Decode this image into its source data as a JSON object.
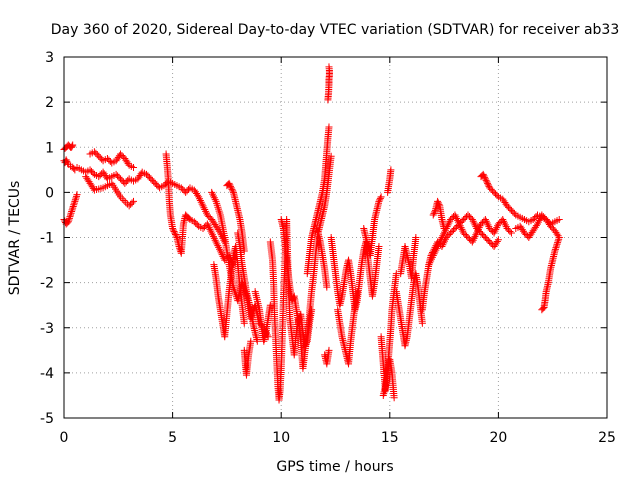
{
  "chart_data": {
    "type": "scatter",
    "title": "Day 360 of 2020, Sidereal Day-to-day VTEC variation (SDTVAR) for receiver ab33",
    "xlabel": "GPS time / hours",
    "ylabel": "SDTVAR / TECUs",
    "xlim": [
      0,
      25
    ],
    "ylim": [
      -5,
      3
    ],
    "xticks": [
      0,
      5,
      10,
      15,
      20,
      25
    ],
    "yticks": [
      -5,
      -4,
      -3,
      -2,
      -1,
      0,
      1,
      2,
      3
    ],
    "grid": true,
    "marker": "+",
    "series_color": "#ff0000",
    "series": [
      {
        "name": "SDTVAR",
        "segments": [
          {
            "x": [
              0.0,
              0.1,
              0.2,
              0.3,
              0.35,
              0.4
            ],
            "y": [
              0.95,
              1.0,
              1.05,
              1.0,
              1.0,
              1.05
            ]
          },
          {
            "x": [
              0.0,
              0.05,
              0.1,
              0.2,
              0.3,
              0.4,
              0.5
            ],
            "y": [
              0.7,
              0.66,
              0.72,
              0.62,
              0.58,
              0.56,
              0.5
            ]
          },
          {
            "x": [
              0.0,
              0.1,
              0.2,
              0.3,
              0.4,
              0.5,
              0.6
            ],
            "y": [
              -0.6,
              -0.7,
              -0.65,
              -0.5,
              -0.35,
              -0.2,
              -0.05
            ]
          },
          {
            "x": [
              0.6,
              0.8,
              1.0,
              1.2,
              1.4,
              1.6,
              1.8,
              2.0,
              2.2,
              2.4,
              2.6,
              2.8,
              3.0,
              3.2,
              3.4,
              3.6,
              3.8,
              4.0,
              4.2,
              4.4,
              4.6,
              4.8,
              5.0,
              5.2,
              5.4,
              5.6,
              5.8,
              6.0,
              6.2,
              6.4,
              6.6,
              6.8,
              7.0,
              7.2,
              7.4
            ],
            "y": [
              0.55,
              0.5,
              0.45,
              0.5,
              0.4,
              0.35,
              0.45,
              0.3,
              0.35,
              0.4,
              0.3,
              0.2,
              0.3,
              0.25,
              0.3,
              0.45,
              0.4,
              0.3,
              0.2,
              0.1,
              0.15,
              0.25,
              0.2,
              0.15,
              0.1,
              0.0,
              0.1,
              0.05,
              -0.1,
              -0.3,
              -0.5,
              -0.6,
              -0.75,
              -0.9,
              -1.1
            ]
          },
          {
            "x": [
              1.2,
              1.4,
              1.6,
              1.8,
              2.0,
              2.2,
              2.4,
              2.6,
              2.8,
              3.0,
              3.2
            ],
            "y": [
              0.85,
              0.9,
              0.8,
              0.7,
              0.75,
              0.65,
              0.7,
              0.85,
              0.75,
              0.6,
              0.55
            ]
          },
          {
            "x": [
              1.0,
              1.2,
              1.4,
              1.8,
              2.2,
              2.6,
              3.0,
              3.2
            ],
            "y": [
              0.35,
              0.2,
              0.05,
              0.1,
              0.2,
              -0.1,
              -0.3,
              -0.2
            ]
          },
          {
            "x": [
              4.7,
              4.75,
              4.8,
              4.85,
              4.9,
              5.0,
              5.1,
              5.2,
              5.3,
              5.4,
              5.5,
              5.6,
              5.7,
              5.8,
              6.0,
              6.2,
              6.4,
              6.6,
              6.8,
              7.0,
              7.2,
              7.4,
              7.6,
              7.8
            ],
            "y": [
              0.85,
              0.6,
              0.3,
              -0.2,
              -0.5,
              -0.8,
              -0.9,
              -1.0,
              -1.2,
              -1.35,
              -0.7,
              -0.5,
              -0.55,
              -0.6,
              -0.65,
              -0.75,
              -0.8,
              -0.7,
              -0.9,
              -1.1,
              -1.3,
              -1.5,
              -1.4,
              -1.6
            ]
          },
          {
            "x": [
              6.8,
              7.0,
              7.2,
              7.4,
              7.6,
              7.8,
              8.0,
              8.2,
              8.4,
              8.6,
              8.8,
              9.0,
              9.2,
              9.4
            ],
            "y": [
              0.0,
              -0.2,
              -0.5,
              -1.0,
              -1.6,
              -2.1,
              -2.4,
              -2.0,
              -2.3,
              -2.8,
              -2.5,
              -2.9,
              -3.0,
              -3.2
            ]
          },
          {
            "x": [
              6.9,
              7.0,
              7.1,
              7.2,
              7.3,
              7.4,
              7.5,
              7.6,
              7.7,
              7.8,
              7.9,
              8.0,
              8.1,
              8.2,
              8.3
            ],
            "y": [
              -1.6,
              -1.9,
              -2.3,
              -2.6,
              -2.9,
              -3.2,
              -2.7,
              -2.2,
              -1.8,
              -1.4,
              -1.2,
              -1.6,
              -2.1,
              -2.5,
              -2.9
            ]
          },
          {
            "x": [
              7.5,
              7.6,
              7.7,
              7.8,
              7.9,
              8.0,
              8.1,
              8.2,
              8.3
            ],
            "y": [
              0.15,
              0.2,
              0.1,
              0.0,
              -0.2,
              -0.4,
              -0.6,
              -0.9,
              -1.3
            ]
          },
          {
            "x": [
              8.0,
              8.1,
              8.2,
              8.3,
              8.4,
              8.5,
              8.6,
              8.7,
              8.8,
              8.9
            ],
            "y": [
              -0.9,
              -1.2,
              -1.6,
              -1.9,
              -2.2,
              -2.4,
              -2.6,
              -2.9,
              -3.1,
              -3.3
            ]
          },
          {
            "x": [
              8.3,
              8.35,
              8.4,
              8.5,
              8.6
            ],
            "y": [
              -3.5,
              -3.8,
              -4.05,
              -3.6,
              -3.3
            ]
          },
          {
            "x": [
              8.8,
              9.0,
              9.1,
              9.2,
              9.3,
              9.4,
              9.5
            ],
            "y": [
              -2.2,
              -2.6,
              -3.0,
              -3.3,
              -3.1,
              -2.8,
              -2.5
            ]
          },
          {
            "x": [
              9.5,
              9.6,
              9.65,
              9.7,
              9.75,
              9.8,
              9.85,
              9.9,
              9.95,
              10.0,
              10.05,
              10.1,
              10.15,
              10.2,
              10.25,
              10.3,
              10.35,
              10.4,
              10.5,
              10.6,
              10.7,
              10.8,
              10.9,
              11.0,
              11.1,
              11.2,
              11.3,
              11.4,
              11.5,
              11.6,
              11.7,
              11.8,
              11.9,
              12.0,
              12.1,
              12.2,
              12.3
            ],
            "y": [
              -1.1,
              -1.5,
              -2.0,
              -2.8,
              -3.3,
              -3.8,
              -4.3,
              -4.6,
              -4.4,
              -3.9,
              -3.2,
              -2.4,
              -1.8,
              -1.2,
              -0.6,
              -1.5,
              -2.2,
              -2.8,
              -3.2,
              -3.6,
              -3.1,
              -2.8,
              -3.3,
              -3.9,
              -3.5,
              -3.2,
              -2.7,
              -2.2,
              -1.8,
              -1.3,
              -0.9,
              -0.7,
              -0.5,
              -0.3,
              0.0,
              0.4,
              0.8
            ]
          },
          {
            "x": [
              10.0,
              10.1,
              10.2,
              10.3,
              10.4,
              10.5,
              10.6,
              10.7,
              10.8,
              10.9,
              11.0,
              11.1,
              11.2,
              11.3,
              11.4
            ],
            "y": [
              -0.6,
              -0.8,
              -1.3,
              -1.7,
              -2.1,
              -2.4,
              -2.3,
              -2.6,
              -2.9,
              -2.7,
              -3.1,
              -3.4,
              -3.3,
              -2.9,
              -2.6
            ]
          },
          {
            "x": [
              11.2,
              11.3,
              11.4,
              11.5,
              11.6,
              11.7,
              11.8,
              11.9,
              12.0,
              12.05,
              12.1,
              12.15,
              12.2
            ],
            "y": [
              -1.8,
              -1.4,
              -1.0,
              -0.8,
              -0.6,
              -0.4,
              -0.2,
              0.0,
              0.3,
              0.6,
              0.9,
              1.2,
              1.45
            ]
          },
          {
            "x": [
              11.6,
              11.7,
              11.8,
              11.9,
              12.0,
              12.1
            ],
            "y": [
              -0.8,
              -0.9,
              -1.1,
              -1.4,
              -1.7,
              -2.1
            ]
          },
          {
            "x": [
              12.15,
              12.18,
              12.2,
              12.2,
              12.22,
              12.22,
              12.2
            ],
            "y": [
              2.05,
              2.2,
              2.4,
              2.5,
              2.6,
              2.7,
              2.78
            ]
          },
          {
            "x": [
              12.0,
              12.1,
              12.2
            ],
            "y": [
              -3.6,
              -3.8,
              -3.5
            ]
          },
          {
            "x": [
              12.3,
              12.4,
              12.5,
              12.6,
              12.7,
              12.8,
              12.9,
              13.0,
              13.1,
              13.2,
              13.3,
              13.4,
              13.5,
              13.6,
              13.7,
              13.8,
              13.9,
              14.0,
              14.1,
              14.2,
              14.3,
              14.4,
              14.5
            ],
            "y": [
              -1.0,
              -1.4,
              -1.8,
              -2.2,
              -2.5,
              -2.3,
              -2.0,
              -1.7,
              -1.5,
              -1.8,
              -2.2,
              -2.6,
              -2.4,
              -2.0,
              -1.6,
              -1.3,
              -1.1,
              -1.5,
              -1.9,
              -2.3,
              -2.0,
              -1.6,
              -1.2
            ]
          },
          {
            "x": [
              12.6,
              12.7,
              12.8,
              12.9,
              13.0,
              13.1,
              13.2,
              13.3,
              13.4,
              13.5
            ],
            "y": [
              -2.6,
              -2.9,
              -3.2,
              -3.4,
              -3.6,
              -3.8,
              -3.3,
              -2.9,
              -2.5,
              -2.2
            ]
          },
          {
            "x": [
              13.8,
              13.9,
              14.0,
              14.1,
              14.2,
              14.3,
              14.4,
              14.5,
              14.6
            ],
            "y": [
              -0.8,
              -1.0,
              -1.2,
              -1.4,
              -1.0,
              -0.6,
              -0.4,
              -0.2,
              -0.1
            ]
          },
          {
            "x": [
              14.6,
              14.65,
              14.7,
              14.75,
              14.8,
              14.85,
              14.9,
              14.95,
              15.0,
              15.05,
              15.1,
              15.2,
              15.3
            ],
            "y": [
              -3.2,
              -3.5,
              -3.8,
              -4.1,
              -4.4,
              -4.2,
              -3.9,
              -3.6,
              -3.3,
              -3.0,
              -2.6,
              -2.2,
              -1.8
            ]
          },
          {
            "x": [
              14.7,
              14.8,
              14.9,
              15.0,
              15.1,
              15.2
            ],
            "y": [
              -4.5,
              -4.3,
              -4.0,
              -3.7,
              -4.0,
              -4.55
            ]
          },
          {
            "x": [
              14.9,
              15.0,
              15.05
            ],
            "y": [
              0.0,
              0.3,
              0.5
            ]
          },
          {
            "x": [
              15.3,
              15.4,
              15.5,
              15.6,
              15.7,
              15.8,
              15.9,
              16.0,
              16.1,
              16.2,
              16.3,
              16.4,
              16.5
            ],
            "y": [
              -2.2,
              -2.5,
              -2.8,
              -3.1,
              -3.4,
              -3.2,
              -2.8,
              -2.4,
              -2.0,
              -1.8,
              -2.1,
              -2.5,
              -2.9
            ]
          },
          {
            "x": [
              15.5,
              15.6,
              15.7,
              15.8,
              15.9,
              16.0,
              16.1,
              16.2
            ],
            "y": [
              -1.8,
              -1.5,
              -1.2,
              -1.4,
              -1.6,
              -1.9,
              -1.4,
              -1.0
            ]
          },
          {
            "x": [
              16.5,
              16.6,
              16.7,
              16.8,
              16.9,
              17.0,
              17.2,
              17.4,
              17.6,
              17.8,
              18.0,
              18.2,
              18.4,
              18.6,
              18.8,
              19.0,
              19.2,
              19.4,
              19.6,
              19.8,
              20.0
            ],
            "y": [
              -2.6,
              -2.2,
              -1.9,
              -1.6,
              -1.4,
              -1.3,
              -1.1,
              -1.2,
              -1.0,
              -0.9,
              -0.8,
              -0.7,
              -0.6,
              -0.5,
              -0.6,
              -0.8,
              -0.9,
              -1.0,
              -1.1,
              -1.2,
              -1.05
            ]
          },
          {
            "x": [
              16.8,
              17.0,
              17.2,
              17.4,
              17.6,
              17.8,
              18.0,
              18.2,
              18.4,
              18.6,
              18.8,
              19.0,
              19.2,
              19.4,
              19.6,
              19.8,
              20.0,
              20.2,
              20.4,
              20.6
            ],
            "y": [
              -1.6,
              -1.4,
              -1.2,
              -1.0,
              -0.8,
              -0.6,
              -0.5,
              -0.7,
              -0.9,
              -1.0,
              -1.1,
              -0.9,
              -0.7,
              -0.6,
              -0.8,
              -0.9,
              -0.7,
              -0.6,
              -0.8,
              -0.9
            ]
          },
          {
            "x": [
              17.0,
              17.1,
              17.2,
              17.3,
              17.4,
              17.5
            ],
            "y": [
              -0.5,
              -0.4,
              -0.2,
              -0.3,
              -0.6,
              -0.8
            ]
          },
          {
            "x": [
              19.2,
              19.3,
              19.4,
              19.5,
              19.6,
              19.8,
              20.0,
              20.2,
              20.4,
              20.6,
              20.8,
              21.0,
              21.2,
              21.4,
              21.6,
              21.8,
              22.0,
              22.2,
              22.4,
              22.6,
              22.8
            ],
            "y": [
              0.35,
              0.4,
              0.3,
              0.2,
              0.1,
              0.0,
              -0.1,
              -0.15,
              -0.3,
              -0.4,
              -0.5,
              -0.55,
              -0.6,
              -0.65,
              -0.6,
              -0.5,
              -0.55,
              -0.6,
              -0.75,
              -0.85,
              -1.0
            ]
          },
          {
            "x": [
              20.8,
              21.0,
              21.2,
              21.4,
              21.6,
              21.8,
              22.0,
              22.2,
              22.4,
              22.6,
              22.8
            ],
            "y": [
              -0.8,
              -0.75,
              -0.9,
              -1.0,
              -0.85,
              -0.7,
              -0.5,
              -0.6,
              -0.7,
              -0.65,
              -0.6
            ]
          },
          {
            "x": [
              22.0,
              22.1,
              22.15,
              22.2,
              22.3,
              22.4,
              22.5,
              22.6,
              22.7,
              22.8
            ],
            "y": [
              -2.6,
              -2.55,
              -2.4,
              -2.2,
              -2.0,
              -1.7,
              -1.5,
              -1.3,
              -1.15,
              -1.0
            ]
          }
        ]
      }
    ]
  }
}
